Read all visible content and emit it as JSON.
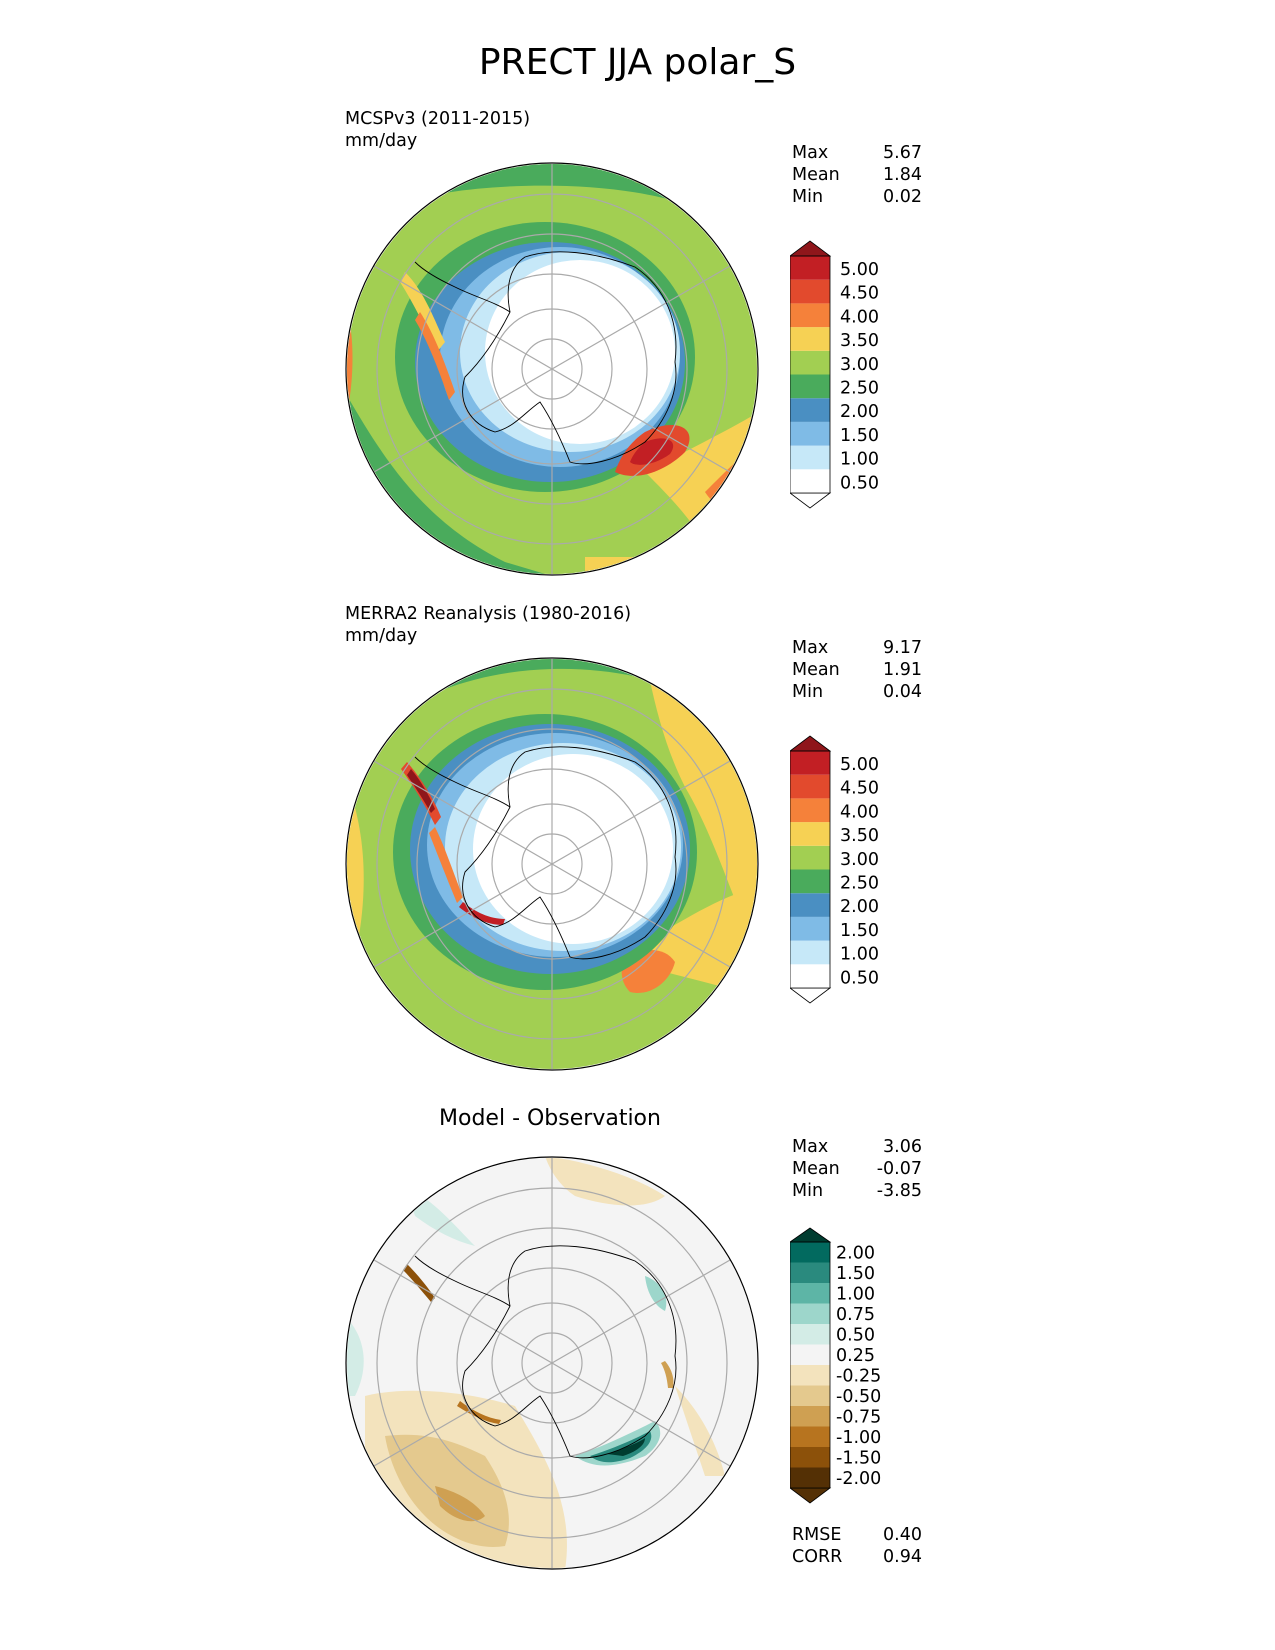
{
  "figure": {
    "title": "PRECT JJA polar_S"
  },
  "panels": [
    {
      "id": "model",
      "title_line1": "MCSPv3 (2011-2015)",
      "title_line2": "mm/day",
      "stats": [
        {
          "label": "Max",
          "value": "5.67"
        },
        {
          "label": "Mean",
          "value": "1.84"
        },
        {
          "label": "Min",
          "value": "0.02"
        }
      ]
    },
    {
      "id": "obs",
      "title_line1": "MERRA2 Reanalysis (1980-2016)",
      "title_line2": "mm/day",
      "stats": [
        {
          "label": "Max",
          "value": "9.17"
        },
        {
          "label": "Mean",
          "value": "1.91"
        },
        {
          "label": "Min",
          "value": "0.04"
        }
      ]
    },
    {
      "id": "diff",
      "title_center": "Model - Observation",
      "stats": [
        {
          "label": "Max",
          "value": "3.06"
        },
        {
          "label": "Mean",
          "value": "-0.07"
        },
        {
          "label": "Min",
          "value": "-3.85"
        }
      ],
      "metrics": [
        {
          "label": "RMSE",
          "value": "0.40"
        },
        {
          "label": "CORR",
          "value": "0.94"
        }
      ]
    }
  ],
  "chart_data": {
    "type": "heatmap",
    "projection": "south polar stereographic",
    "variable": "PRECT",
    "season": "JJA",
    "precip_colorbar": {
      "levels": [
        "0.50",
        "1.00",
        "1.50",
        "2.00",
        "2.50",
        "3.00",
        "3.50",
        "4.00",
        "4.50",
        "5.00"
      ],
      "colors": [
        "#ffffff",
        "#c6e8f8",
        "#7fbbe6",
        "#4a8fc2",
        "#4aab5c",
        "#a2cf52",
        "#f6d154",
        "#f5813a",
        "#e24a2d",
        "#c21f24",
        "#8f161b"
      ],
      "extend": "both"
    },
    "diff_colorbar": {
      "levels": [
        "-2.00",
        "-1.50",
        "-1.00",
        "-0.75",
        "-0.50",
        "-0.25",
        "0.25",
        "0.50",
        "0.75",
        "1.00",
        "1.50",
        "2.00"
      ],
      "colors": [
        "#543005",
        "#8c510a",
        "#b7741f",
        "#cfa052",
        "#e4c98e",
        "#f3e3bd",
        "#f4f4f4",
        "#d3ece6",
        "#9dd6cb",
        "#5db5a6",
        "#2a8a7e",
        "#026a5f",
        "#003c30"
      ],
      "extend": "both"
    }
  }
}
